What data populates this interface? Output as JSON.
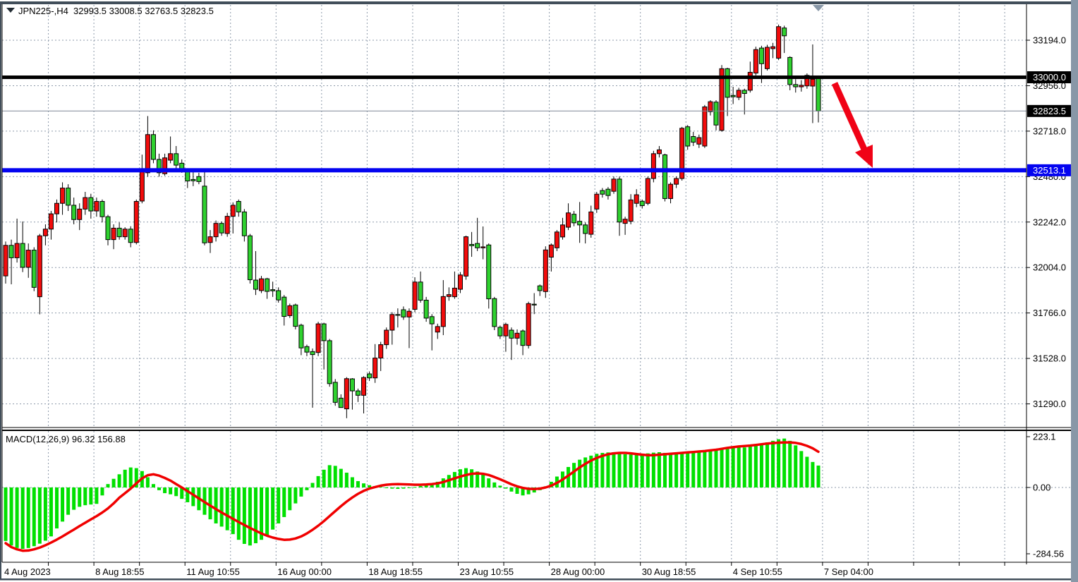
{
  "header": {
    "title": "JPN225-,H4  32993.5 33008.5 32763.5 32823.5",
    "symbol": "JPN225-",
    "timeframe": "H4"
  },
  "colors": {
    "background": "#ffffff",
    "grid": "#8d9aaa",
    "bull_candle": "#f20c0c",
    "bear_candle": "#2fd12f",
    "candle_outline": "#000000",
    "macd_histogram": "#00e000",
    "macd_signal": "#f00000",
    "level_black": "#000000",
    "level_blue": "#0404f0",
    "current_price_line": "#7e8996",
    "frame": "#414e5a",
    "right_strip": "#8897a7",
    "arrow": "#f00216",
    "badge_text": "#ffffff"
  },
  "chart_data": {
    "type": "candlestick",
    "title": "JPN225-,H4",
    "last_bar": {
      "open": 32993.5,
      "high": 33008.5,
      "low": 32763.5,
      "close": 32823.5
    },
    "price_axis": {
      "tick_labels": [
        "33194.0",
        "32956.0",
        "32718.0",
        "32480.0",
        "32242.0",
        "32004.0",
        "31766.0",
        "31528.0",
        "31290.0"
      ],
      "tick_values": [
        33194.0,
        32956.0,
        32718.0,
        32480.0,
        32242.0,
        32004.0,
        31766.0,
        31528.0,
        31290.0
      ],
      "ylim": [
        31180,
        33290
      ]
    },
    "time_axis": {
      "labels": [
        "4 Aug 2023",
        "8 Aug 18:55",
        "11 Aug 10:55",
        "16 Aug 00:00",
        "18 Aug 18:55",
        "23 Aug 10:55",
        "28 Aug 00:00",
        "30 Aug 18:55",
        "4 Sep 10:55",
        "7 Sep 04:00"
      ]
    },
    "levels": [
      {
        "value": 33000.0,
        "label": "33000.0",
        "style": "solid-thick",
        "color": "#000000",
        "badge": "#000000",
        "thickness": 5
      },
      {
        "value": 32823.5,
        "label": "32823.5",
        "style": "current-price",
        "color": "#7e8996",
        "badge": "#000000",
        "thickness": 1
      },
      {
        "value": 32513.1,
        "label": "32513.1",
        "style": "solid-thick",
        "color": "#0404f0",
        "badge": "#0404f0",
        "thickness": 6
      }
    ],
    "candles": [
      [
        31960,
        32140,
        31920,
        32120
      ],
      [
        32120,
        32150,
        31916,
        32055
      ],
      [
        32055,
        32260,
        32030,
        32130
      ],
      [
        32130,
        32245,
        31980,
        32005
      ],
      [
        32005,
        32130,
        31950,
        32095
      ],
      [
        32095,
        32110,
        31880,
        31900
      ],
      [
        31851,
        32180,
        31759,
        32170
      ],
      [
        32170,
        32230,
        32120,
        32205
      ],
      [
        32205,
        32300,
        32150,
        32285
      ],
      [
        32285,
        32360,
        32240,
        32340
      ],
      [
        32340,
        32450,
        32280,
        32420
      ],
      [
        32420,
        32440,
        32300,
        32330
      ],
      [
        32330,
        32370,
        32230,
        32255
      ],
      [
        32255,
        32340,
        32200,
        32310
      ],
      [
        32310,
        32400,
        32280,
        32370
      ],
      [
        32370,
        32390,
        32260,
        32300
      ],
      [
        32300,
        32370,
        32270,
        32350
      ],
      [
        32350,
        32360,
        32240,
        32270
      ],
      [
        32270,
        32280,
        32120,
        32150
      ],
      [
        32150,
        32230,
        32100,
        32210
      ],
      [
        32210,
        32240,
        32150,
        32165
      ],
      [
        32165,
        32215,
        32150,
        32205
      ],
      [
        32205,
        32220,
        32110,
        32135
      ],
      [
        32135,
        32360,
        32125,
        32350
      ],
      [
        32352,
        32595,
        32340,
        32513
      ],
      [
        32500,
        32797,
        32480,
        32700
      ],
      [
        32700,
        32722,
        32550,
        32570
      ],
      [
        32570,
        32600,
        32480,
        32500
      ],
      [
        32495,
        32600,
        32485,
        32578
      ],
      [
        32566,
        32690,
        32550,
        32600
      ],
      [
        32600,
        32640,
        32520,
        32540
      ],
      [
        32550,
        32570,
        32500,
        32513
      ],
      [
        32506,
        32520,
        32420,
        32457
      ],
      [
        32465,
        32520,
        32430,
        32458
      ],
      [
        32480,
        32500,
        32440,
        32454
      ],
      [
        32430,
        32510,
        32120,
        32133
      ],
      [
        32135,
        32200,
        32080,
        32165
      ],
      [
        32165,
        32250,
        32140,
        32235
      ],
      [
        32235,
        32245,
        32170,
        32185
      ],
      [
        32182,
        32290,
        32165,
        32272
      ],
      [
        32272,
        32345,
        32182,
        32330
      ],
      [
        32350,
        32360,
        32270,
        32295
      ],
      [
        32295,
        32310,
        32140,
        32170
      ],
      [
        32170,
        32180,
        31920,
        31940
      ],
      [
        31938,
        32090,
        31860,
        31890
      ],
      [
        31883,
        31960,
        31870,
        31945
      ],
      [
        31945,
        31950,
        31840,
        31879
      ],
      [
        31888,
        31930,
        31850,
        31882
      ],
      [
        31883,
        31900,
        31820,
        31834
      ],
      [
        31849,
        31860,
        31700,
        31748
      ],
      [
        31752,
        31815,
        31740,
        31804
      ],
      [
        31808,
        31815,
        31680,
        31696
      ],
      [
        31702,
        31710,
        31545,
        31583
      ],
      [
        31590,
        31600,
        31540,
        31561
      ],
      [
        31564,
        31580,
        31270,
        31548
      ],
      [
        31559,
        31720,
        31540,
        31709
      ],
      [
        31709,
        31715,
        31470,
        31621
      ],
      [
        31621,
        31630,
        31380,
        31396
      ],
      [
        31403,
        31420,
        31280,
        31298
      ],
      [
        31320,
        31340,
        31270,
        31271
      ],
      [
        31264,
        31430,
        31215,
        31422
      ],
      [
        31421,
        31425,
        31260,
        31358
      ],
      [
        31358,
        31370,
        31300,
        31335
      ],
      [
        31335,
        31435,
        31240,
        31428
      ],
      [
        31447,
        31460,
        31410,
        31426
      ],
      [
        31426,
        31603,
        31400,
        31530
      ],
      [
        31530,
        31615,
        31462,
        31600
      ],
      [
        31600,
        31690,
        31578,
        31676
      ],
      [
        31676,
        31770,
        31600,
        31758
      ],
      [
        31758,
        31790,
        31690,
        31755
      ],
      [
        31783,
        31800,
        31730,
        31745
      ],
      [
        31745,
        31790,
        31582,
        31775
      ],
      [
        31785,
        31953,
        31770,
        31928
      ],
      [
        31928,
        31983,
        31820,
        31833
      ],
      [
        31833,
        31850,
        31720,
        31739
      ],
      [
        31747,
        31760,
        31570,
        31709
      ],
      [
        31666,
        31710,
        31630,
        31695
      ],
      [
        31695,
        31938,
        31650,
        31852
      ],
      [
        31852,
        31900,
        31830,
        31862
      ],
      [
        31851,
        31983,
        31840,
        31896
      ],
      [
        31890,
        31980,
        31870,
        31965
      ],
      [
        31959,
        32171,
        31940,
        32165
      ],
      [
        32125,
        32190,
        32060,
        32118
      ],
      [
        32130,
        32264,
        32090,
        32107
      ],
      [
        32107,
        32219,
        32047,
        32112
      ],
      [
        32122,
        32130,
        31789,
        31840
      ],
      [
        31841,
        31850,
        31676,
        31695
      ],
      [
        31691,
        31700,
        31630,
        31646
      ],
      [
        31646,
        31715,
        31563,
        31706
      ],
      [
        31676,
        31690,
        31520,
        31634
      ],
      [
        31634,
        31680,
        31600,
        31660
      ],
      [
        31672,
        31680,
        31545,
        31596
      ],
      [
        31596,
        31825,
        31580,
        31815
      ],
      [
        31812,
        31870,
        31760,
        31808
      ],
      [
        31908,
        31915,
        31855,
        31883
      ],
      [
        31878,
        32115,
        31845,
        32096
      ],
      [
        32058,
        32130,
        31983,
        32122
      ],
      [
        32107,
        32200,
        32090,
        32190
      ],
      [
        32164,
        32264,
        32150,
        32227
      ],
      [
        32215,
        32340,
        32200,
        32290
      ],
      [
        32283,
        32300,
        32220,
        32238
      ],
      [
        32246,
        32347,
        32133,
        32227
      ],
      [
        32227,
        32240,
        32130,
        32182
      ],
      [
        32178,
        32328,
        32160,
        32295
      ],
      [
        32310,
        32400,
        32290,
        32388
      ],
      [
        32407,
        32420,
        32370,
        32388
      ],
      [
        32414,
        32425,
        32360,
        32381
      ],
      [
        32403,
        32480,
        32390,
        32467
      ],
      [
        32467,
        32480,
        32170,
        32242
      ],
      [
        32235,
        32270,
        32175,
        32257
      ],
      [
        32246,
        32388,
        32230,
        32358
      ],
      [
        32340,
        32414,
        32320,
        32385
      ],
      [
        32351,
        32360,
        32313,
        32328
      ],
      [
        32340,
        32480,
        32330,
        32470
      ],
      [
        32470,
        32615,
        32450,
        32600
      ],
      [
        32600,
        32640,
        32580,
        32620
      ],
      [
        32594,
        32600,
        32350,
        32365
      ],
      [
        32365,
        32450,
        32340,
        32440
      ],
      [
        32440,
        32480,
        32420,
        32470
      ],
      [
        32470,
        32740,
        32459,
        32733
      ],
      [
        32741,
        32750,
        32620,
        32640
      ],
      [
        32690,
        32714,
        32640,
        32660
      ],
      [
        32650,
        32700,
        32630,
        32684
      ],
      [
        32640,
        32855,
        32630,
        32845
      ],
      [
        32820,
        32880,
        32800,
        32872
      ],
      [
        32870,
        32880,
        32722,
        32750
      ],
      [
        32722,
        33064,
        32715,
        33045
      ],
      [
        33045,
        33050,
        32797,
        32895
      ],
      [
        32905,
        32950,
        32860,
        32898
      ],
      [
        32895,
        32945,
        32880,
        32932
      ],
      [
        32932,
        32940,
        32805,
        32915
      ],
      [
        32932,
        33082,
        32920,
        33026
      ],
      [
        33022,
        33160,
        33010,
        33145
      ],
      [
        33153,
        33165,
        32970,
        33071
      ],
      [
        33045,
        33170,
        33035,
        33157
      ],
      [
        33150,
        33180,
        33100,
        33160
      ],
      [
        33100,
        33276,
        33090,
        33265
      ],
      [
        33258,
        33270,
        33127,
        33217
      ],
      [
        33104,
        33110,
        32932,
        32962
      ],
      [
        32962,
        32990,
        32920,
        32950
      ],
      [
        32950,
        32985,
        32925,
        32958
      ],
      [
        32955,
        33020,
        32940,
        33010
      ],
      [
        32954,
        33172,
        32760,
        32990
      ],
      [
        32993.5,
        33008.5,
        32763.5,
        32823.5
      ]
    ],
    "macd": {
      "label": "MACD(12,26,9)",
      "values_label": "96.32 156.88",
      "current_macd": 96.32,
      "current_signal": 156.88,
      "axis_tick_labels": [
        "223.1",
        "0.00",
        "-284.56"
      ],
      "axis_tick_values": [
        223.1,
        0.0,
        -284.56
      ],
      "histogram": [
        -235,
        -255,
        -266,
        -270,
        -266,
        -258,
        -247,
        -234,
        -215,
        -180,
        -150,
        -120,
        -98,
        -85,
        -78,
        -75,
        -72,
        -35,
        15,
        38,
        58,
        78,
        88,
        85,
        72,
        45,
        15,
        -12,
        -25,
        -30,
        -38,
        -50,
        -65,
        -82,
        -100,
        -120,
        -140,
        -158,
        -172,
        -188,
        -205,
        -230,
        -248,
        -255,
        -245,
        -230,
        -210,
        -185,
        -158,
        -130,
        -100,
        -70,
        -40,
        -12,
        20,
        50,
        78,
        98,
        95,
        82,
        65,
        45,
        28,
        18,
        10,
        6,
        3,
        -2,
        -5,
        -6,
        -5,
        -3,
        2,
        6,
        10,
        14,
        25,
        40,
        55,
        68,
        80,
        85,
        80,
        70,
        58,
        40,
        22,
        8,
        -5,
        -18,
        -28,
        -35,
        -30,
        -22,
        -12,
        5,
        25,
        48,
        70,
        90,
        108,
        122,
        132,
        140,
        148,
        152,
        154,
        155,
        150,
        146,
        145,
        146,
        147,
        150,
        153,
        155,
        152,
        150,
        150,
        155,
        158,
        158,
        158,
        162,
        166,
        164,
        172,
        175,
        175,
        176,
        176,
        180,
        188,
        193,
        198,
        205,
        212,
        215,
        205,
        185,
        160,
        135,
        112,
        96.32
      ],
      "signal": [
        -245,
        -262,
        -272,
        -278,
        -277,
        -272,
        -264,
        -254,
        -242,
        -229,
        -215,
        -200,
        -185,
        -170,
        -155,
        -140,
        -126,
        -110,
        -92,
        -70,
        -45,
        -25,
        -5,
        18,
        40,
        54,
        58,
        52,
        42,
        30,
        15,
        0,
        -16,
        -32,
        -48,
        -64,
        -80,
        -95,
        -110,
        -124,
        -138,
        -152,
        -165,
        -178,
        -190,
        -202,
        -212,
        -220,
        -226,
        -230,
        -229,
        -224,
        -215,
        -202,
        -186,
        -168,
        -148,
        -126,
        -104,
        -82,
        -62,
        -44,
        -28,
        -15,
        -5,
        2,
        8,
        12,
        14,
        15,
        14,
        13,
        12,
        12,
        13,
        15,
        18,
        24,
        32,
        40,
        48,
        55,
        60,
        62,
        60,
        55,
        46,
        36,
        25,
        14,
        5,
        -2,
        -6,
        -7,
        -5,
        0,
        8,
        20,
        35,
        52,
        70,
        88,
        104,
        118,
        130,
        139,
        146,
        150,
        152,
        152,
        150,
        147,
        144,
        142,
        142,
        144,
        146,
        148,
        150,
        152,
        154,
        156,
        158,
        160,
        163,
        166,
        170,
        174,
        177,
        180,
        182,
        184,
        187,
        190,
        193,
        195,
        197,
        198,
        198,
        196,
        191,
        183,
        172,
        156.88
      ]
    },
    "annotations": {
      "arrow": {
        "shaft": [
          1183,
          118,
          1227,
          216
        ],
        "head": [
          [
            1237,
            238
          ],
          [
            1212,
            216
          ],
          [
            1237,
            205
          ]
        ],
        "width": 9
      },
      "top_marker": [
        [
          1152,
          7
        ],
        [
          1168,
          7
        ],
        [
          1160,
          16
        ]
      ],
      "title_triangle": [
        [
          9,
          11
        ],
        [
          21,
          11
        ],
        [
          15,
          18
        ]
      ]
    }
  }
}
